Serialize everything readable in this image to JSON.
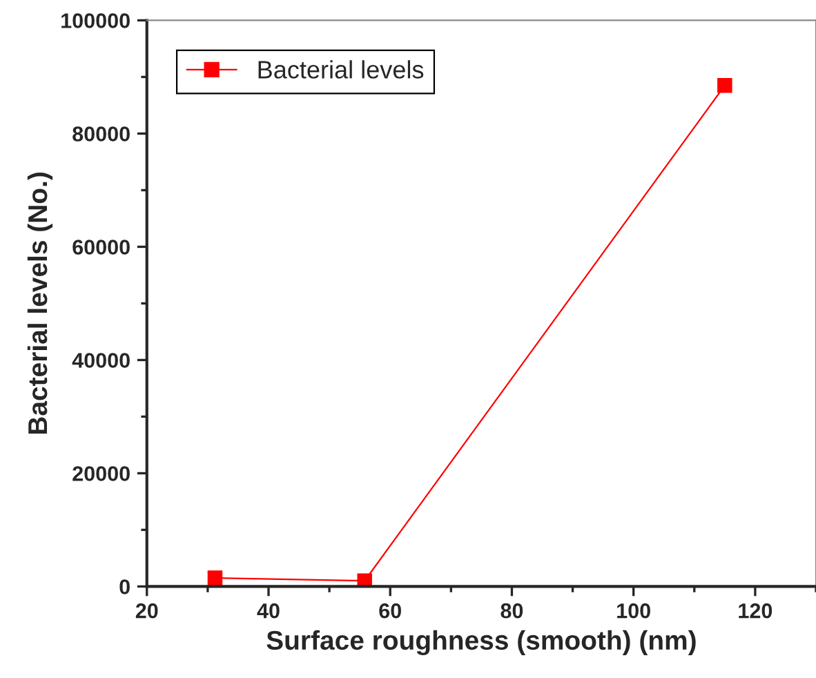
{
  "chart_data": {
    "type": "line",
    "xlabel": "Surface roughness (smooth) (nm)",
    "ylabel": "Bacterial levels (No.)",
    "x": [
      31.2,
      55.8,
      115
    ],
    "series": [
      {
        "name": "Bacterial levels",
        "color": "#ff0000",
        "values": [
          1500,
          1000,
          88500
        ]
      }
    ],
    "xlim": [
      20,
      130
    ],
    "xticks": [
      20,
      40,
      60,
      80,
      100,
      120
    ],
    "ylim": [
      0,
      100000
    ],
    "yticks": [
      0,
      20000,
      40000,
      60000,
      80000,
      100000
    ],
    "marker": "square",
    "line_style": "solid",
    "legend": "top left",
    "grid": false
  }
}
